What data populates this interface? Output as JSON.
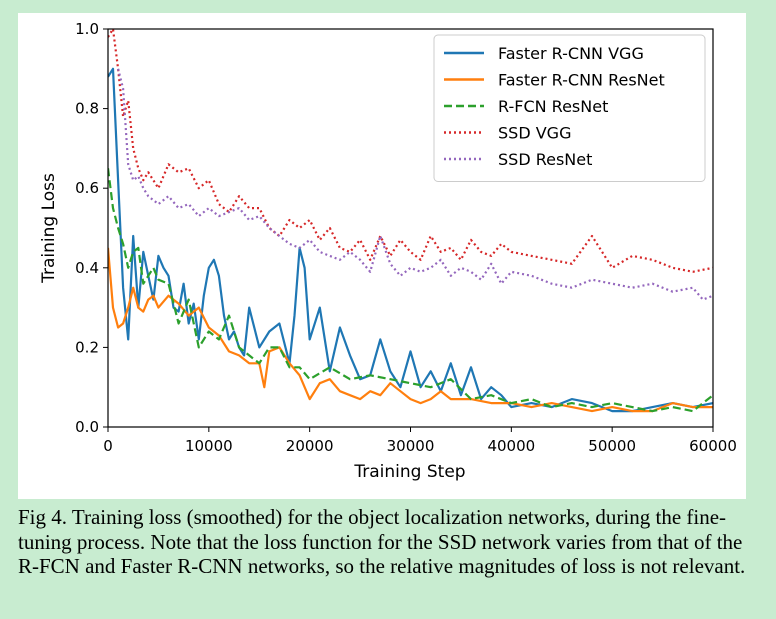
{
  "caption": "Fig 4. Training loss (smoothed) for the object localization networks, during the fine-tuning process. Note that the loss function for the SSD network varies from that of the R-FCN and Faster R-CNN networks, so the relative magnitudes of loss is not relevant.",
  "chart_data": {
    "type": "line",
    "title": "",
    "xlabel": "Training Step",
    "ylabel": "Training Loss",
    "xlim": [
      0,
      60000
    ],
    "ylim": [
      0,
      1.0
    ],
    "xticks": [
      0,
      10000,
      20000,
      30000,
      40000,
      50000,
      60000
    ],
    "xtick_labels": [
      "0",
      "10000",
      "20000",
      "30000",
      "40000",
      "50000",
      "60000"
    ],
    "yticks": [
      0,
      0.2,
      0.4,
      0.6,
      0.8,
      1.0
    ],
    "ytick_labels": [
      "0.0",
      "0.2",
      "0.4",
      "0.6",
      "0.8",
      "1.0"
    ],
    "grid": false,
    "legend_position": "top-right",
    "series": [
      {
        "name": "Faster R-CNN VGG",
        "color": "#1f77b4",
        "style": "solid",
        "x": [
          0,
          500,
          1000,
          1500,
          2000,
          2500,
          3000,
          3500,
          4000,
          4500,
          5000,
          5500,
          6000,
          6500,
          7000,
          7500,
          8000,
          8500,
          9000,
          9500,
          10000,
          10500,
          11000,
          11500,
          12000,
          12500,
          13000,
          13500,
          14000,
          15000,
          16000,
          17000,
          18000,
          18500,
          19000,
          19500,
          20000,
          21000,
          22000,
          23000,
          24000,
          25000,
          26000,
          27000,
          28000,
          29000,
          30000,
          31000,
          32000,
          33000,
          34000,
          35000,
          36000,
          37000,
          38000,
          39000,
          40000,
          42000,
          44000,
          46000,
          48000,
          50000,
          52000,
          54000,
          56000,
          58000,
          60000
        ],
        "values": [
          0.88,
          0.9,
          0.62,
          0.35,
          0.22,
          0.48,
          0.3,
          0.44,
          0.38,
          0.32,
          0.43,
          0.4,
          0.38,
          0.3,
          0.29,
          0.36,
          0.26,
          0.31,
          0.22,
          0.33,
          0.4,
          0.42,
          0.38,
          0.28,
          0.22,
          0.24,
          0.2,
          0.18,
          0.3,
          0.2,
          0.24,
          0.26,
          0.16,
          0.28,
          0.45,
          0.4,
          0.22,
          0.3,
          0.14,
          0.25,
          0.18,
          0.12,
          0.13,
          0.22,
          0.14,
          0.1,
          0.19,
          0.1,
          0.14,
          0.09,
          0.16,
          0.08,
          0.15,
          0.07,
          0.1,
          0.08,
          0.05,
          0.06,
          0.05,
          0.07,
          0.06,
          0.04,
          0.04,
          0.05,
          0.06,
          0.05,
          0.06
        ]
      },
      {
        "name": "Faster R-CNN ResNet",
        "color": "#ff7f0e",
        "style": "solid",
        "x": [
          0,
          500,
          1000,
          1500,
          2000,
          2500,
          3000,
          3500,
          4000,
          4500,
          5000,
          6000,
          7000,
          8000,
          9000,
          10000,
          11000,
          12000,
          13000,
          14000,
          15000,
          15500,
          16000,
          17000,
          18000,
          19000,
          20000,
          21000,
          22000,
          23000,
          24000,
          25000,
          26000,
          27000,
          28000,
          29000,
          30000,
          31000,
          32000,
          33000,
          34000,
          36000,
          38000,
          40000,
          42000,
          44000,
          46000,
          48000,
          50000,
          52000,
          54000,
          56000,
          58000,
          60000
        ],
        "values": [
          0.45,
          0.3,
          0.25,
          0.26,
          0.3,
          0.35,
          0.3,
          0.29,
          0.32,
          0.33,
          0.3,
          0.33,
          0.31,
          0.28,
          0.3,
          0.25,
          0.23,
          0.19,
          0.18,
          0.16,
          0.16,
          0.1,
          0.19,
          0.2,
          0.16,
          0.13,
          0.07,
          0.11,
          0.12,
          0.09,
          0.08,
          0.07,
          0.09,
          0.08,
          0.11,
          0.09,
          0.07,
          0.06,
          0.07,
          0.09,
          0.07,
          0.07,
          0.06,
          0.06,
          0.05,
          0.06,
          0.05,
          0.04,
          0.05,
          0.04,
          0.04,
          0.06,
          0.05,
          0.05
        ]
      },
      {
        "name": "R-FCN ResNet",
        "color": "#2ca02c",
        "style": "dashed",
        "x": [
          0,
          500,
          1000,
          1500,
          2000,
          2500,
          3000,
          3500,
          4000,
          4500,
          5000,
          6000,
          7000,
          8000,
          9000,
          10000,
          11000,
          12000,
          13000,
          14000,
          15000,
          16000,
          17000,
          18000,
          19000,
          20000,
          22000,
          24000,
          26000,
          28000,
          30000,
          32000,
          34000,
          36000,
          38000,
          40000,
          42000,
          44000,
          46000,
          48000,
          50000,
          52000,
          54000,
          56000,
          58000,
          60000
        ],
        "values": [
          0.65,
          0.55,
          0.5,
          0.46,
          0.4,
          0.44,
          0.45,
          0.36,
          0.38,
          0.4,
          0.37,
          0.36,
          0.26,
          0.32,
          0.2,
          0.24,
          0.22,
          0.28,
          0.2,
          0.18,
          0.16,
          0.2,
          0.2,
          0.15,
          0.15,
          0.12,
          0.15,
          0.12,
          0.13,
          0.12,
          0.11,
          0.1,
          0.12,
          0.07,
          0.08,
          0.06,
          0.07,
          0.05,
          0.06,
          0.05,
          0.06,
          0.05,
          0.04,
          0.05,
          0.04,
          0.08
        ]
      },
      {
        "name": "SSD VGG",
        "color": "#d62728",
        "style": "dotted",
        "x": [
          0,
          500,
          1000,
          1500,
          2000,
          2500,
          3000,
          3500,
          4000,
          5000,
          6000,
          7000,
          8000,
          9000,
          10000,
          11000,
          12000,
          13000,
          14000,
          15000,
          16000,
          17000,
          18000,
          19000,
          20000,
          21000,
          22000,
          23000,
          24000,
          25000,
          26000,
          27000,
          28000,
          29000,
          30000,
          31000,
          32000,
          33000,
          34000,
          35000,
          36000,
          37000,
          38000,
          39000,
          40000,
          42000,
          44000,
          46000,
          48000,
          50000,
          52000,
          54000,
          56000,
          58000,
          60000
        ],
        "values": [
          0.98,
          1.0,
          0.9,
          0.78,
          0.82,
          0.7,
          0.65,
          0.62,
          0.64,
          0.6,
          0.66,
          0.64,
          0.65,
          0.6,
          0.62,
          0.56,
          0.54,
          0.58,
          0.55,
          0.55,
          0.5,
          0.48,
          0.52,
          0.5,
          0.52,
          0.47,
          0.5,
          0.45,
          0.44,
          0.47,
          0.42,
          0.48,
          0.43,
          0.47,
          0.44,
          0.42,
          0.48,
          0.44,
          0.45,
          0.42,
          0.47,
          0.44,
          0.43,
          0.46,
          0.44,
          0.43,
          0.42,
          0.41,
          0.48,
          0.4,
          0.43,
          0.42,
          0.4,
          0.39,
          0.4
        ]
      },
      {
        "name": "SSD ResNet",
        "color": "#9467bd",
        "style": "dotted",
        "x": [
          1000,
          1500,
          2000,
          2500,
          3000,
          3500,
          4000,
          5000,
          6000,
          7000,
          8000,
          9000,
          10000,
          11000,
          12000,
          13000,
          14000,
          15000,
          16000,
          17000,
          18000,
          19000,
          20000,
          21000,
          22000,
          23000,
          24000,
          25000,
          26000,
          27000,
          28000,
          29000,
          30000,
          31000,
          32000,
          33000,
          34000,
          35000,
          36000,
          37000,
          38000,
          39000,
          40000,
          42000,
          44000,
          46000,
          48000,
          50000,
          52000,
          54000,
          56000,
          58000,
          59000,
          60000
        ],
        "values": [
          0.9,
          0.85,
          0.66,
          0.62,
          0.63,
          0.6,
          0.58,
          0.56,
          0.58,
          0.55,
          0.56,
          0.53,
          0.55,
          0.53,
          0.54,
          0.55,
          0.52,
          0.53,
          0.5,
          0.48,
          0.46,
          0.45,
          0.47,
          0.44,
          0.43,
          0.42,
          0.44,
          0.42,
          0.39,
          0.48,
          0.41,
          0.38,
          0.4,
          0.39,
          0.4,
          0.42,
          0.38,
          0.4,
          0.39,
          0.37,
          0.41,
          0.36,
          0.39,
          0.38,
          0.36,
          0.35,
          0.37,
          0.36,
          0.35,
          0.36,
          0.34,
          0.35,
          0.32,
          0.33
        ]
      }
    ]
  }
}
